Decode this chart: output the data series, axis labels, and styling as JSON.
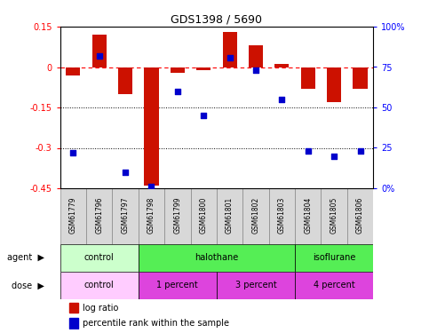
{
  "title": "GDS1398 / 5690",
  "samples": [
    "GSM61779",
    "GSM61796",
    "GSM61797",
    "GSM61798",
    "GSM61799",
    "GSM61800",
    "GSM61801",
    "GSM61802",
    "GSM61803",
    "GSM61804",
    "GSM61805",
    "GSM61806"
  ],
  "log_ratio": [
    -0.03,
    0.12,
    -0.1,
    -0.44,
    -0.02,
    -0.01,
    0.13,
    0.08,
    0.01,
    -0.08,
    -0.13,
    -0.08
  ],
  "pct_rank": [
    22,
    82,
    10,
    1,
    60,
    45,
    81,
    73,
    55,
    23,
    20,
    23
  ],
  "ylim_left": [
    -0.45,
    0.15
  ],
  "ylim_right": [
    0,
    100
  ],
  "yticks_left": [
    -0.45,
    -0.3,
    -0.15,
    0.0,
    0.15
  ],
  "ytick_labels_left": [
    "-0.45",
    "-0.3",
    "-0.15",
    "0",
    "0.15"
  ],
  "yticks_right": [
    0,
    25,
    50,
    75,
    100
  ],
  "ytick_labels_right": [
    "0%",
    "25",
    "50",
    "75",
    "100%"
  ],
  "hline_y": 0,
  "dotted_lines": [
    -0.15,
    -0.3
  ],
  "bar_color": "#cc1100",
  "dot_color": "#0000cc",
  "agent_segments": [
    {
      "label": "control",
      "start": 0,
      "end": 3,
      "color": "#ccffcc"
    },
    {
      "label": "halothane",
      "start": 3,
      "end": 9,
      "color": "#55ee55"
    },
    {
      "label": "isoflurane",
      "start": 9,
      "end": 12,
      "color": "#55ee55"
    }
  ],
  "dose_segments": [
    {
      "label": "control",
      "start": 0,
      "end": 3,
      "color": "#ffccff"
    },
    {
      "label": "1 percent",
      "start": 3,
      "end": 6,
      "color": "#dd44dd"
    },
    {
      "label": "3 percent",
      "start": 6,
      "end": 9,
      "color": "#dd44dd"
    },
    {
      "label": "4 percent",
      "start": 9,
      "end": 12,
      "color": "#dd44dd"
    }
  ],
  "legend_items": [
    {
      "label": "log ratio",
      "color": "#cc1100"
    },
    {
      "label": "percentile rank within the sample",
      "color": "#0000cc"
    }
  ],
  "bar_width": 0.55,
  "sample_box_color": "#d8d8d8",
  "sample_box_edge": "#888888"
}
